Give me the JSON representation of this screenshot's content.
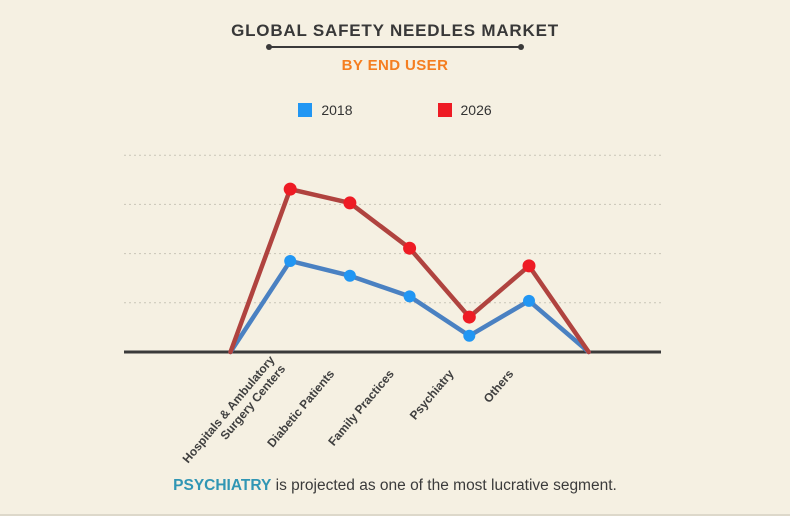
{
  "header": {
    "title": "GLOBAL SAFETY NEEDLES MARKET",
    "subtitle": "BY END USER"
  },
  "legend": {
    "items": [
      {
        "label": "2018",
        "color": "#2196f3"
      },
      {
        "label": "2026",
        "color": "#ee1b24"
      }
    ]
  },
  "chart_data": {
    "type": "line",
    "title": "GLOBAL SAFETY NEEDLES MARKET",
    "subtitle": "BY END USER",
    "categories": [
      "Hospitals & Ambulatory\nSurgery Centers",
      "Diabetic Patients",
      "Family Practices",
      "Psychiatry",
      "Others"
    ],
    "series": [
      {
        "name": "2018",
        "line_color": "#4a81c2",
        "marker_color": "#2196f3",
        "values": [
          1.85,
          1.55,
          1.13,
          0.33,
          1.04
        ]
      },
      {
        "name": "2026",
        "line_color": "#b0433f",
        "marker_color": "#ee1b24",
        "values": [
          3.31,
          3.03,
          2.11,
          0.71,
          1.75
        ]
      }
    ],
    "value_units": "relative (no y-axis labels shown; 1 unit = 1 gridline spacing)",
    "ylim": [
      0,
      4
    ],
    "edge_points_at_zero": true,
    "gridlines": {
      "count": 4,
      "style": "dashed"
    },
    "legend_position": "top",
    "xlabel": "",
    "ylabel": ""
  },
  "caption": {
    "highlight": "PSYCHIATRY",
    "rest": " is projected as one of the most lucrative segment."
  },
  "colors": {
    "background": "#f5f0e2",
    "title": "#383838",
    "subtitle_orange": "#f57e20",
    "caption_teal": "#3096b4",
    "axis": "#3a3a3a",
    "gridline": "#c9c5b8"
  }
}
